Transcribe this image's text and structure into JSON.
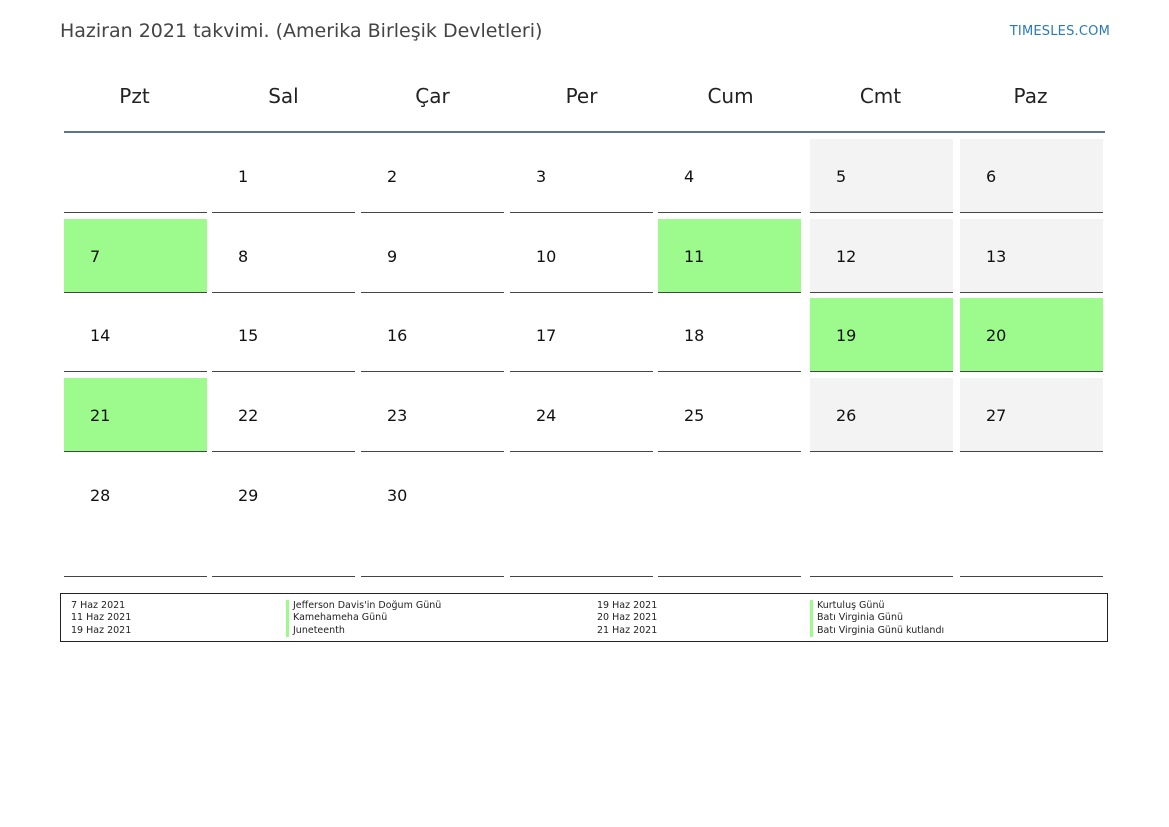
{
  "header": {
    "title": "Haziran 2021 takvimi. (Amerika Birleşik Devletleri)",
    "site": "TIMESLES.COM"
  },
  "weekdays": [
    "Pzt",
    "Sal",
    "Çar",
    "Per",
    "Cum",
    "Cmt",
    "Paz"
  ],
  "colors": {
    "holiday": "#9dfa8c",
    "weekend": "#f3f3f3",
    "header_line": "#5b7494",
    "link": "#2a7ab8"
  },
  "weeks": [
    [
      {
        "day": ""
      },
      {
        "day": "1"
      },
      {
        "day": "2"
      },
      {
        "day": "3"
      },
      {
        "day": "4"
      },
      {
        "day": "5",
        "weekend": true
      },
      {
        "day": "6",
        "weekend": true
      }
    ],
    [
      {
        "day": "7",
        "holiday": true
      },
      {
        "day": "8"
      },
      {
        "day": "9"
      },
      {
        "day": "10"
      },
      {
        "day": "11",
        "holiday": true
      },
      {
        "day": "12",
        "weekend": true
      },
      {
        "day": "13",
        "weekend": true
      }
    ],
    [
      {
        "day": "14"
      },
      {
        "day": "15"
      },
      {
        "day": "16"
      },
      {
        "day": "17"
      },
      {
        "day": "18"
      },
      {
        "day": "19",
        "holiday": true
      },
      {
        "day": "20",
        "holiday": true
      }
    ],
    [
      {
        "day": "21",
        "holiday": true
      },
      {
        "day": "22"
      },
      {
        "day": "23"
      },
      {
        "day": "24"
      },
      {
        "day": "25"
      },
      {
        "day": "26",
        "weekend": true
      },
      {
        "day": "27",
        "weekend": true
      }
    ],
    [
      {
        "day": "28"
      },
      {
        "day": "29"
      },
      {
        "day": "30"
      },
      {
        "day": ""
      },
      {
        "day": ""
      },
      {
        "day": ""
      },
      {
        "day": ""
      }
    ]
  ],
  "legend": {
    "left": [
      {
        "date": "7 Haz 2021",
        "name": "Jefferson Davis'in Doğum Günü"
      },
      {
        "date": "11 Haz 2021",
        "name": "Kamehameha Günü"
      },
      {
        "date": "19 Haz 2021",
        "name": "Juneteenth"
      }
    ],
    "right": [
      {
        "date": "19 Haz 2021",
        "name": "Kurtuluş Günü"
      },
      {
        "date": "20 Haz 2021",
        "name": "Batı Virginia Günü"
      },
      {
        "date": "21 Haz 2021",
        "name": "Batı Virginia Günü kutlandı"
      }
    ]
  }
}
